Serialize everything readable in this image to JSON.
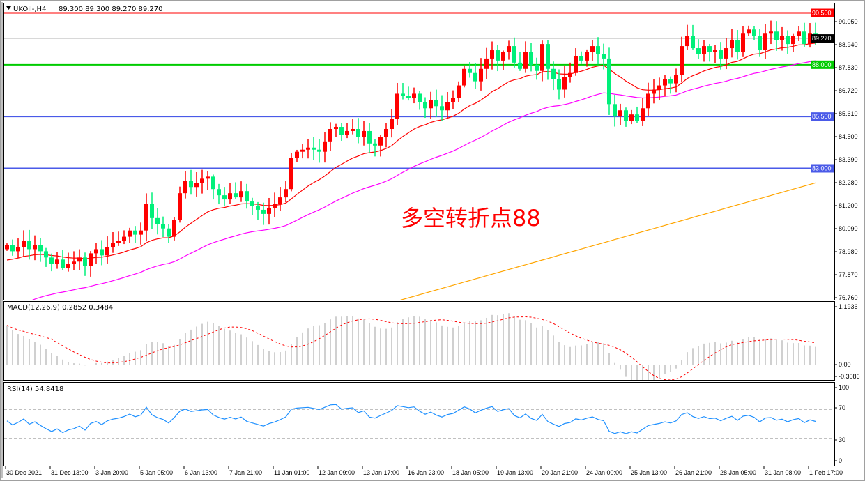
{
  "header": {
    "symbol_label": "UKOil-,H4",
    "ohlc": "89.300 89.300 89.270 89.270"
  },
  "colors": {
    "bull": "#ff0000",
    "bear": "#00f07a",
    "ma_fast": "#ff0000",
    "ma_mid": "#ff00ff",
    "ma_long": "#ffa500",
    "macd_hist": "#c0c0c0",
    "macd_signal": "#ff0000",
    "rsi": "#1e90ff",
    "current_price": "#c0c0c0"
  },
  "chart_data": {
    "type": "candlestick",
    "symbol": "UKOil-",
    "timeframe": "H4",
    "closes": [
      79.3,
      79.0,
      79.2,
      79.5,
      79.1,
      79.3,
      79.0,
      78.7,
      78.4,
      78.6,
      78.2,
      78.4,
      78.5,
      78.7,
      78.3,
      78.9,
      79.1,
      78.8,
      79.2,
      79.4,
      79.5,
      79.7,
      80.0,
      79.8,
      80.0,
      81.3,
      80.6,
      80.3,
      80.1,
      79.7,
      80.5,
      81.8,
      82.4,
      82.1,
      82.3,
      82.5,
      82.6,
      82.0,
      81.7,
      81.5,
      81.8,
      81.6,
      81.9,
      81.4,
      81.2,
      81.0,
      80.8,
      81.1,
      81.3,
      81.6,
      82.0,
      83.5,
      83.8,
      83.9,
      84.0,
      83.9,
      83.8,
      84.3,
      84.9,
      85.0,
      84.6,
      84.8,
      84.9,
      84.5,
      84.8,
      84.2,
      84.1,
      84.5,
      84.9,
      85.4,
      86.6,
      86.5,
      86.4,
      86.6,
      86.2,
      85.9,
      86.3,
      86.0,
      85.8,
      86.2,
      86.4,
      87.0,
      87.8,
      87.6,
      87.2,
      87.8,
      88.3,
      88.7,
      88.2,
      88.6,
      88.9,
      88.1,
      87.8,
      88.6,
      88.0,
      87.7,
      89.0,
      87.8,
      87.3,
      86.8,
      87.4,
      87.6,
      88.4,
      88.2,
      88.6,
      88.9,
      88.5,
      88.3,
      86.1,
      85.5,
      85.8,
      85.3,
      85.6,
      85.3,
      85.9,
      86.6,
      86.8,
      87.0,
      87.3,
      87.1,
      87.5,
      88.9,
      89.4,
      88.8,
      88.5,
      88.9,
      88.6,
      88.7,
      88.3,
      88.8,
      89.2,
      88.6,
      89.5,
      89.7,
      89.4,
      88.7,
      89.5,
      89.6,
      89.2,
      89.4,
      89.0,
      89.4,
      89.6,
      89.0,
      89.5,
      89.27
    ],
    "price_ticks": [
      "90.050",
      "88.940",
      "87.830",
      "86.720",
      "85.610",
      "84.500",
      "83.390",
      "82.280",
      "81.200",
      "80.090",
      "78.980",
      "77.870",
      "76.760"
    ],
    "price_range": [
      76.76,
      90.6
    ],
    "levels": [
      {
        "value": 90.5,
        "label": "90.500",
        "color": "#ff0000"
      },
      {
        "value": 88.0,
        "label": "88.000",
        "color": "#00cc00"
      },
      {
        "value": 85.5,
        "label": "85.500",
        "color": "#4a5ae8"
      },
      {
        "value": 83.0,
        "label": "83.000",
        "color": "#4a5ae8"
      }
    ],
    "current_price": {
      "value": 89.27,
      "label": "89.270"
    },
    "ma_long": {
      "start_bar": 70,
      "start_value": 76.6,
      "end_value": 82.3
    },
    "annotation": "多空转折点88",
    "time_labels": [
      "30 Dec 2021",
      "31 Dec 13:00",
      "3 Jan 20:00",
      "5 Jan 05:00",
      "6 Jan 13:00",
      "7 Jan 21:00",
      "11 Jan 01:00",
      "12 Jan 09:00",
      "13 Jan 17:00",
      "16 Jan 23:00",
      "18 Jan 05:00",
      "19 Jan 13:00",
      "20 Jan 21:00",
      "24 Jan 00:00",
      "25 Jan 13:00",
      "26 Jan 21:00",
      "28 Jan 05:00",
      "31 Jan 08:00",
      "1 Feb 17:00"
    ],
    "macd": {
      "label": "MACD(12,26,9) 0.2852 0.3484",
      "ticks": [
        "1.1936",
        "0.00",
        "-0.3086"
      ]
    },
    "rsi": {
      "label": "RSI(14) 54.8418",
      "ticks": [
        "100",
        "70",
        "30",
        "0"
      ],
      "levels": [
        70,
        30
      ]
    }
  }
}
